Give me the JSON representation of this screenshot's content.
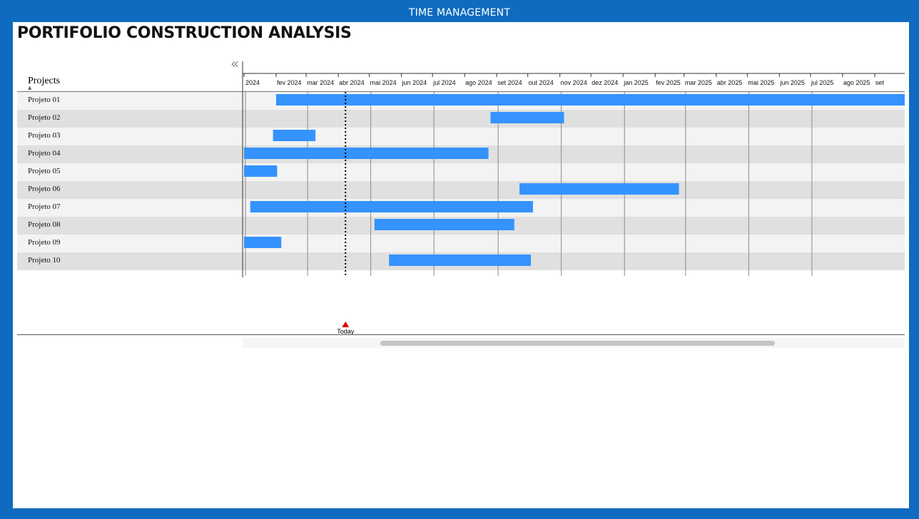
{
  "window": {
    "banner_title": "TIME MANAGEMENT"
  },
  "page": {
    "title": "PORTIFOLIO CONSTRUCTION ANALYSIS"
  },
  "controls": {
    "collapse_icon": "double-chevron-left-icon",
    "collapse_glyph": "«"
  },
  "table": {
    "column_header": "Projects",
    "sort_indicator": "▲"
  },
  "today": {
    "label": "Today",
    "date": "2024-04-08"
  },
  "colors": {
    "frame": "#0e6bbf",
    "bar": "#3493ff",
    "row_odd": "#f3f3f3",
    "row_even": "#e0e0e0",
    "gridline": "#8a8a8a",
    "today_marker": "#e00000"
  },
  "chart_data": {
    "type": "gantt",
    "x_range": [
      "2024-01-01",
      "2025-09-30"
    ],
    "x_ticks": [
      {
        "date": "2024-01-01",
        "label": "2024"
      },
      {
        "date": "2024-02-01",
        "label": "fev 2024"
      },
      {
        "date": "2024-03-01",
        "label": "mar 2024"
      },
      {
        "date": "2024-04-01",
        "label": "abr 2024"
      },
      {
        "date": "2024-05-01",
        "label": "mai 2024"
      },
      {
        "date": "2024-06-01",
        "label": "jun 2024"
      },
      {
        "date": "2024-07-01",
        "label": "jul 2024"
      },
      {
        "date": "2024-08-01",
        "label": "ago 2024"
      },
      {
        "date": "2024-09-01",
        "label": "set 2024"
      },
      {
        "date": "2024-10-01",
        "label": "out 2024"
      },
      {
        "date": "2024-11-01",
        "label": "nov 2024"
      },
      {
        "date": "2024-12-01",
        "label": "dez 2024"
      },
      {
        "date": "2025-01-01",
        "label": "jan 2025"
      },
      {
        "date": "2025-02-01",
        "label": "fev 2025"
      },
      {
        "date": "2025-03-01",
        "label": "mar 2025"
      },
      {
        "date": "2025-04-01",
        "label": "abr 2025"
      },
      {
        "date": "2025-05-01",
        "label": "mai 2025"
      },
      {
        "date": "2025-06-01",
        "label": "jun 2025"
      },
      {
        "date": "2025-07-01",
        "label": "jul 2025"
      },
      {
        "date": "2025-08-01",
        "label": "ago 2025"
      },
      {
        "date": "2025-09-01",
        "label": "set"
      }
    ],
    "major_gridlines": [
      "2024-01-01",
      "2024-03-01",
      "2024-05-01",
      "2024-07-01",
      "2024-09-01",
      "2024-11-01",
      "2025-01-01",
      "2025-03-01",
      "2025-05-01",
      "2025-07-01"
    ],
    "tasks": [
      {
        "name": "Projeto 01",
        "start": "2024-02-01",
        "end": "2025-09-30"
      },
      {
        "name": "Projeto 02",
        "start": "2024-08-26",
        "end": "2024-11-05"
      },
      {
        "name": "Projeto 03",
        "start": "2024-01-29",
        "end": "2024-03-10"
      },
      {
        "name": "Projeto 04",
        "start": "2024-01-01",
        "end": "2024-08-24"
      },
      {
        "name": "Projeto 05",
        "start": "2024-01-01",
        "end": "2024-02-02"
      },
      {
        "name": "Projeto 06",
        "start": "2024-09-23",
        "end": "2025-02-24"
      },
      {
        "name": "Projeto 07",
        "start": "2024-01-07",
        "end": "2024-10-06"
      },
      {
        "name": "Projeto 08",
        "start": "2024-05-06",
        "end": "2024-09-18"
      },
      {
        "name": "Projeto 09",
        "start": "2024-01-01",
        "end": "2024-02-06"
      },
      {
        "name": "Projeto 10",
        "start": "2024-05-20",
        "end": "2024-10-04"
      }
    ]
  }
}
